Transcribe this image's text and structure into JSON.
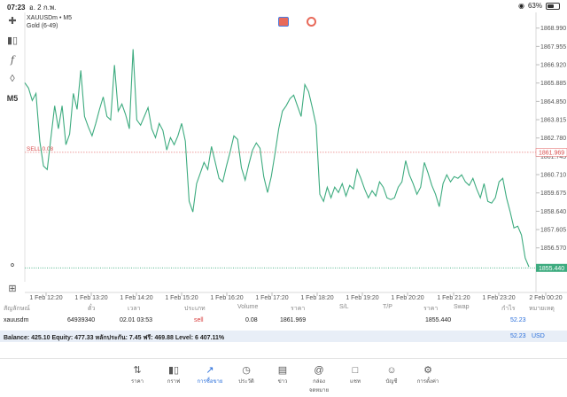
{
  "status_bar": {
    "time": "07:23",
    "date": "อ. 2 ก.พ.",
    "battery": "63%"
  },
  "symbol": {
    "title": "XAUUSDm • M5",
    "subtitle": "Gold (6-49)"
  },
  "timeframe": "M5",
  "chart_data": {
    "type": "line",
    "y_ticks": [
      "1868.990",
      "1867.955",
      "1866.920",
      "1865.885",
      "1864.850",
      "1863.815",
      "1862.780",
      "1861.745",
      "1860.710",
      "1859.675",
      "1858.640",
      "1857.605",
      "1856.570",
      "1855.535"
    ],
    "x_ticks": [
      "1 Feb 12:20",
      "1 Feb 13:20",
      "1 Feb 14:20",
      "1 Feb 15:20",
      "1 Feb 16:20",
      "1 Feb 17:20",
      "1 Feb 18:20",
      "1 Feb 19:20",
      "1 Feb 20:20",
      "1 Feb 21:20",
      "1 Feb 23:20",
      "2 Feb 00:20"
    ],
    "ylim": [
      1854.9,
      1869.6
    ],
    "sell_level": {
      "label": "SELL 0.08",
      "price": 1861.969,
      "price_label": "1861.969"
    },
    "bid": {
      "price": 1855.44,
      "price_label": "1855.440"
    },
    "series": [
      {
        "values": [
          1865.9,
          1865.6,
          1864.9,
          1865.3,
          1862.6,
          1861.2,
          1861.0,
          1862.8,
          1864.6,
          1863.3,
          1864.6,
          1862.4,
          1863.0,
          1865.3,
          1864.4,
          1866.6,
          1864.0,
          1863.4,
          1862.9,
          1863.6,
          1864.4,
          1865.1,
          1864.0,
          1863.8,
          1866.9,
          1864.3,
          1864.7,
          1864.1,
          1863.3,
          1867.8,
          1863.8,
          1863.5,
          1864.0,
          1864.5,
          1863.3,
          1862.8,
          1863.6,
          1863.2,
          1862.1,
          1862.8,
          1862.4,
          1862.9,
          1863.6,
          1862.6,
          1859.2,
          1858.6,
          1860.2,
          1860.8,
          1861.4,
          1861.0,
          1862.3,
          1861.4,
          1860.5,
          1860.3,
          1861.2,
          1862.0,
          1862.9,
          1862.7,
          1861.1,
          1860.4,
          1861.3,
          1862.1,
          1862.5,
          1862.2,
          1860.6,
          1859.7,
          1860.6,
          1861.9,
          1863.3,
          1864.3,
          1864.6,
          1865.0,
          1865.2,
          1864.6,
          1864.0,
          1865.8,
          1865.4,
          1864.5,
          1863.5,
          1859.6,
          1859.2,
          1860.0,
          1859.4,
          1860.0,
          1859.7,
          1860.2,
          1859.5,
          1860.1,
          1859.9,
          1861.0,
          1860.5,
          1859.9,
          1859.4,
          1859.8,
          1859.5,
          1860.3,
          1860.0,
          1859.4,
          1859.3,
          1859.4,
          1860.0,
          1860.3,
          1861.5,
          1860.7,
          1860.2,
          1859.6,
          1860.0,
          1861.4,
          1860.8,
          1860.1,
          1859.6,
          1858.9,
          1860.2,
          1860.7,
          1860.3,
          1860.6,
          1860.5,
          1860.7,
          1860.3,
          1860.1,
          1860.5,
          1859.9,
          1859.4,
          1860.2,
          1859.2,
          1859.1,
          1859.4,
          1860.3,
          1860.5,
          1859.4,
          1858.6,
          1857.7,
          1857.8,
          1857.3,
          1856.0,
          1855.5
        ]
      }
    ]
  },
  "table": {
    "headers": [
      "สัญลักษณ์",
      "ตั๋ว",
      "เวลา",
      "ประเภท",
      "Volume",
      "ราคา",
      "S/L",
      "T/P",
      "ราคา",
      "Swap",
      "กำไร",
      "หมายเหตุ"
    ],
    "row": {
      "symbol": "xauusdm",
      "ticket": "64939340",
      "time": "02.01 03:53",
      "type": "sell",
      "volume": "0.08",
      "open_price": "1861.969",
      "sl": "",
      "tp": "",
      "current_price": "1855.440",
      "swap": "",
      "profit": "52.23",
      "comment": ""
    },
    "balance_line": "Balance: 425.10 Equity: 477.33 หลักประกัน: 7.45 ฟรี: 469.88 Level: 6 407.11%",
    "balance_profit": "52.23",
    "currency": "USD"
  },
  "nav": [
    {
      "label": "ราคา",
      "icon": "quotes-icon"
    },
    {
      "label": "กราฟ",
      "icon": "candles-icon"
    },
    {
      "label": "การซื้อขาย",
      "icon": "trade-icon",
      "active": true
    },
    {
      "label": "ประวัติ",
      "icon": "history-icon"
    },
    {
      "label": "ข่าว",
      "icon": "news-icon"
    },
    {
      "label": "กล่องจดหมาย",
      "icon": "mailbox-icon"
    },
    {
      "label": "แชท",
      "icon": "chat-icon"
    },
    {
      "label": "บัญชี",
      "icon": "account-icon"
    },
    {
      "label": "การตั้งค่า",
      "icon": "settings-icon"
    }
  ],
  "colors": {
    "line": "#3dab7f",
    "sell": "#e05a5a",
    "accent": "#2a6fdb",
    "grid": "#ececec"
  }
}
